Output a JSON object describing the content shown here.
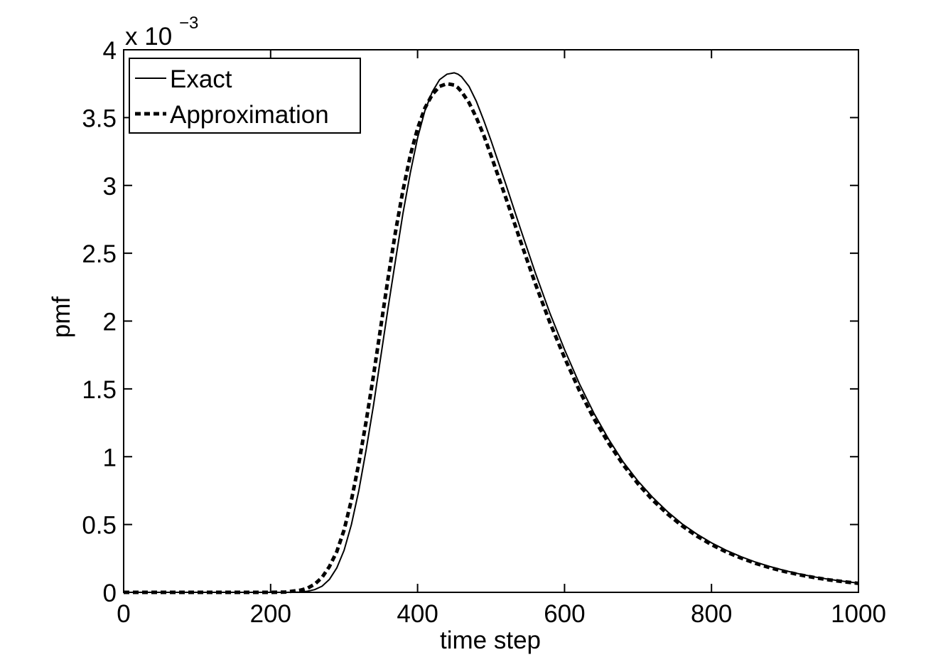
{
  "chart_data": {
    "type": "line",
    "title": "",
    "xlabel": "time step",
    "ylabel": "pmf",
    "xlim": [
      0,
      1000
    ],
    "ylim": [
      0,
      0.004
    ],
    "x_ticks": [
      0,
      200,
      400,
      600,
      800,
      1000
    ],
    "x_tick_labels": [
      "0",
      "200",
      "400",
      "600",
      "800",
      "1000"
    ],
    "y_ticks": [
      0,
      0.0005,
      0.001,
      0.0015,
      0.002,
      0.0025,
      0.003,
      0.0035,
      0.004
    ],
    "y_tick_labels": [
      "0",
      "0.5",
      "1",
      "1.5",
      "2",
      "2.5",
      "3",
      "3.5",
      "4"
    ],
    "y_exponent_label": {
      "base": "x 10",
      "exponent": "−3"
    },
    "grid": false,
    "legend_position": "top-left",
    "x": [
      0,
      50,
      100,
      150,
      200,
      220,
      240,
      250,
      260,
      270,
      280,
      290,
      300,
      310,
      320,
      330,
      340,
      350,
      360,
      370,
      380,
      390,
      400,
      410,
      420,
      430,
      440,
      450,
      455,
      460,
      470,
      480,
      490,
      500,
      520,
      540,
      560,
      580,
      600,
      620,
      640,
      660,
      680,
      700,
      720,
      740,
      760,
      780,
      800,
      820,
      840,
      860,
      880,
      900,
      920,
      940,
      960,
      980,
      1000
    ],
    "series": [
      {
        "name": "Exact",
        "style": "solid",
        "color": "#000000",
        "values": [
          0,
          0,
          0,
          0,
          0,
          0,
          2e-06,
          8e-06,
          2e-05,
          4.5e-05,
          9.5e-05,
          0.00018,
          0.00031,
          0.0005,
          0.00075,
          0.00105,
          0.00138,
          0.00174,
          0.0021,
          0.00245,
          0.00279,
          0.00309,
          0.00335,
          0.00355,
          0.00369,
          0.00378,
          0.00382,
          0.00383,
          0.00382,
          0.0038,
          0.00373,
          0.00362,
          0.00348,
          0.00333,
          0.00301,
          0.00268,
          0.00236,
          0.00206,
          0.00179,
          0.00154,
          0.00132,
          0.00113,
          0.00096,
          0.00082,
          0.0007,
          0.000595,
          0.000505,
          0.00043,
          0.000365,
          0.00031,
          0.000263,
          0.000223,
          0.000189,
          0.00016,
          0.000135,
          0.000114,
          9.6e-05,
          8.1e-05,
          6.8e-05
        ]
      },
      {
        "name": "Approximation",
        "style": "dashed",
        "color": "#000000",
        "values": [
          0,
          0,
          0,
          0,
          0,
          2e-06,
          1.5e-05,
          3e-05,
          6e-05,
          0.00011,
          0.00019,
          0.0003,
          0.00046,
          0.00068,
          0.00095,
          0.00126,
          0.0016,
          0.00196,
          0.00232,
          0.00266,
          0.00296,
          0.00322,
          0.00342,
          0.00357,
          0.00367,
          0.00373,
          0.00375,
          0.00374,
          0.00372,
          0.00369,
          0.00361,
          0.0035,
          0.00337,
          0.00322,
          0.00291,
          0.00259,
          0.00228,
          0.00199,
          0.00173,
          0.00149,
          0.00128,
          0.0011,
          0.00094,
          0.0008,
          0.00068,
          0.000578,
          0.00049,
          0.000415,
          0.000352,
          0.000298,
          0.000253,
          0.000214,
          0.000181,
          0.000153,
          0.000129,
          0.000109,
          9.2e-05,
          7.8e-05,
          6.6e-05
        ]
      }
    ]
  }
}
